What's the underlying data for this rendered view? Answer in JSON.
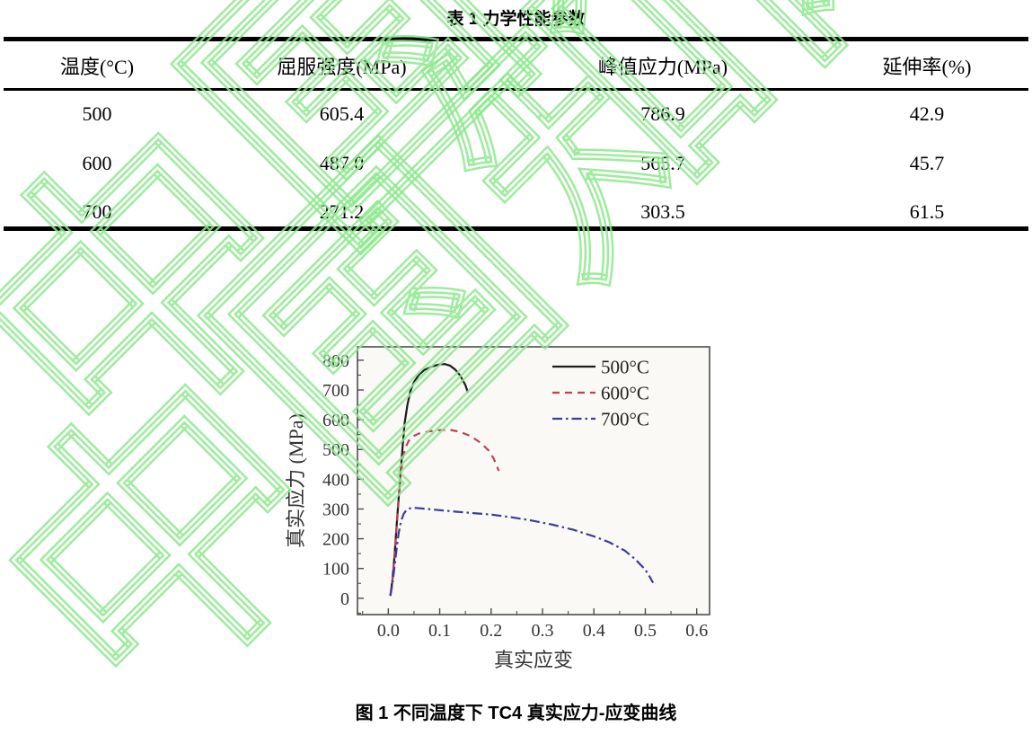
{
  "watermark": {
    "text": "中国知网",
    "color": "#8de88d"
  },
  "table": {
    "title": "表 1 力学性能参数",
    "columns": [
      "温度(°C)",
      "屈服强度(MPa)",
      "峰值应力(MPa)",
      "延伸率(%)"
    ],
    "rows": [
      [
        "500",
        "605.4",
        "786.9",
        "42.9"
      ],
      [
        "600",
        "487.0",
        "565.7",
        "45.7"
      ],
      [
        "700",
        "271.2",
        "303.5",
        "61.5"
      ]
    ]
  },
  "figure": {
    "caption": "图 1 不同温度下 TC4 真实应力-应变曲线"
  },
  "chart_data": {
    "type": "line",
    "title": "",
    "xlabel": "真实应变",
    "ylabel": "真实应力 (MPa)",
    "xlim": [
      -0.06,
      0.625
    ],
    "ylim": [
      -55,
      845
    ],
    "xticks": [
      0.0,
      0.1,
      0.2,
      0.3,
      0.4,
      0.5,
      0.6
    ],
    "yticks": [
      0,
      100,
      200,
      300,
      400,
      500,
      600,
      700,
      800
    ],
    "x_minor_step": 0.05,
    "y_minor_step": 50,
    "grid": false,
    "legend_position": "top-right",
    "axis_color": "#4d4d4d",
    "tick_label_color": "#333333",
    "plot_bg": "#faf9f6",
    "series": [
      {
        "name": "500°C",
        "color": "#1c1c1c",
        "style": "solid",
        "points": [
          [
            0.004,
            8
          ],
          [
            0.008,
            60
          ],
          [
            0.012,
            140
          ],
          [
            0.016,
            240
          ],
          [
            0.02,
            335
          ],
          [
            0.024,
            425
          ],
          [
            0.028,
            515
          ],
          [
            0.032,
            590
          ],
          [
            0.037,
            648
          ],
          [
            0.043,
            696
          ],
          [
            0.05,
            727
          ],
          [
            0.06,
            752
          ],
          [
            0.07,
            767
          ],
          [
            0.085,
            779
          ],
          [
            0.1,
            786
          ],
          [
            0.11,
            787
          ],
          [
            0.12,
            782
          ],
          [
            0.13,
            769
          ],
          [
            0.14,
            748
          ],
          [
            0.15,
            716
          ],
          [
            0.155,
            691
          ]
        ]
      },
      {
        "name": "600°C",
        "color": "#c04052",
        "style": "dashed",
        "points": [
          [
            0.004,
            8
          ],
          [
            0.008,
            58
          ],
          [
            0.012,
            136
          ],
          [
            0.016,
            232
          ],
          [
            0.02,
            325
          ],
          [
            0.024,
            412
          ],
          [
            0.028,
            468
          ],
          [
            0.033,
            505
          ],
          [
            0.04,
            530
          ],
          [
            0.05,
            546
          ],
          [
            0.06,
            554
          ],
          [
            0.08,
            561
          ],
          [
            0.1,
            565
          ],
          [
            0.12,
            566
          ],
          [
            0.14,
            559
          ],
          [
            0.16,
            545
          ],
          [
            0.18,
            522
          ],
          [
            0.195,
            497
          ],
          [
            0.205,
            470
          ],
          [
            0.215,
            428
          ]
        ]
      },
      {
        "name": "700°C",
        "color": "#3c3c99",
        "style": "dashdot",
        "points": [
          [
            0.004,
            8
          ],
          [
            0.008,
            48
          ],
          [
            0.012,
            105
          ],
          [
            0.016,
            163
          ],
          [
            0.02,
            218
          ],
          [
            0.025,
            260
          ],
          [
            0.03,
            284
          ],
          [
            0.035,
            296
          ],
          [
            0.042,
            302
          ],
          [
            0.05,
            304
          ],
          [
            0.07,
            301
          ],
          [
            0.1,
            296
          ],
          [
            0.13,
            291
          ],
          [
            0.16,
            287
          ],
          [
            0.2,
            281
          ],
          [
            0.24,
            272
          ],
          [
            0.28,
            261
          ],
          [
            0.32,
            247
          ],
          [
            0.36,
            230
          ],
          [
            0.4,
            208
          ],
          [
            0.43,
            188
          ],
          [
            0.46,
            160
          ],
          [
            0.48,
            132
          ],
          [
            0.5,
            96
          ],
          [
            0.51,
            68
          ],
          [
            0.515,
            52
          ]
        ]
      }
    ]
  }
}
